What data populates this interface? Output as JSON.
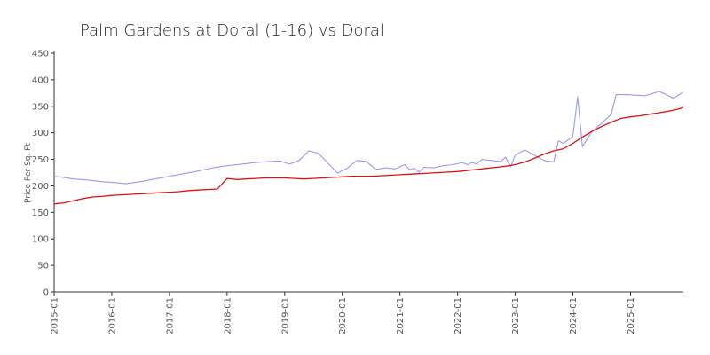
{
  "chart_data": {
    "type": "line",
    "title": "Palm Gardens at Doral (1-16) vs Doral",
    "xlabel": "",
    "ylabel": "Price Per Sq. Ft",
    "ylim": [
      0,
      450
    ],
    "yticks": [
      0,
      50,
      100,
      150,
      200,
      250,
      300,
      350,
      400,
      450
    ],
    "xlim": [
      "2015-01",
      "2025-12"
    ],
    "xticks": [
      "2015-01",
      "2016-01",
      "2017-01",
      "2018-01",
      "2019-01",
      "2020-01",
      "2021-01",
      "2022-01",
      "2023-01",
      "2024-01",
      "2025-01"
    ],
    "grid": false,
    "legend": "none",
    "series": [
      {
        "color": "#9999ee",
        "points": [
          [
            "2015-01",
            218
          ],
          [
            "2015-03",
            216
          ],
          [
            "2015-05",
            213
          ],
          [
            "2015-08",
            211
          ],
          [
            "2015-11",
            208
          ],
          [
            "2016-02",
            206
          ],
          [
            "2016-04",
            204
          ],
          [
            "2016-07",
            208
          ],
          [
            "2016-10",
            213
          ],
          [
            "2017-01",
            218
          ],
          [
            "2017-04",
            223
          ],
          [
            "2017-07",
            228
          ],
          [
            "2017-10",
            234
          ],
          [
            "2018-01",
            238
          ],
          [
            "2018-04",
            241
          ],
          [
            "2018-07",
            244
          ],
          [
            "2018-10",
            246
          ],
          [
            "2018-12",
            247
          ],
          [
            "2019-02",
            241
          ],
          [
            "2019-04",
            248
          ],
          [
            "2019-06",
            266
          ],
          [
            "2019-08",
            262
          ],
          [
            "2019-10",
            243
          ],
          [
            "2019-12",
            224
          ],
          [
            "2020-02",
            233
          ],
          [
            "2020-04",
            248
          ],
          [
            "2020-06",
            246
          ],
          [
            "2020-08",
            231
          ],
          [
            "2020-10",
            234
          ],
          [
            "2020-12",
            232
          ],
          [
            "2021-02",
            240
          ],
          [
            "2021-03",
            231
          ],
          [
            "2021-04",
            233
          ],
          [
            "2021-05",
            226
          ],
          [
            "2021-06",
            235
          ],
          [
            "2021-08",
            234
          ],
          [
            "2021-10",
            238
          ],
          [
            "2021-12",
            240
          ],
          [
            "2022-02",
            244
          ],
          [
            "2022-03",
            240
          ],
          [
            "2022-04",
            244
          ],
          [
            "2022-05",
            241
          ],
          [
            "2022-06",
            250
          ],
          [
            "2022-08",
            248
          ],
          [
            "2022-10",
            246
          ],
          [
            "2022-11",
            254
          ],
          [
            "2022-12",
            236
          ],
          [
            "2023-01",
            258
          ],
          [
            "2023-03",
            268
          ],
          [
            "2023-05",
            258
          ],
          [
            "2023-07",
            248
          ],
          [
            "2023-09",
            245
          ],
          [
            "2023-10",
            285
          ],
          [
            "2023-11",
            280
          ],
          [
            "2024-01",
            293
          ],
          [
            "2024-02",
            368
          ],
          [
            "2024-03",
            274
          ],
          [
            "2024-05",
            303
          ],
          [
            "2024-07",
            318
          ],
          [
            "2024-09",
            335
          ],
          [
            "2024-10",
            372
          ],
          [
            "2024-12",
            372
          ],
          [
            "2025-02",
            371
          ],
          [
            "2025-04",
            370
          ],
          [
            "2025-07",
            378
          ],
          [
            "2025-10",
            365
          ],
          [
            "2025-12",
            377
          ]
        ]
      },
      {
        "color": "#dd1111",
        "points": [
          [
            "2015-01",
            166
          ],
          [
            "2015-03",
            168
          ],
          [
            "2015-05",
            172
          ],
          [
            "2015-07",
            176
          ],
          [
            "2015-09",
            179
          ],
          [
            "2015-11",
            180
          ],
          [
            "2016-01",
            182
          ],
          [
            "2016-03",
            183
          ],
          [
            "2016-05",
            184
          ],
          [
            "2016-07",
            185
          ],
          [
            "2016-09",
            186
          ],
          [
            "2016-11",
            187
          ],
          [
            "2017-01",
            188
          ],
          [
            "2017-03",
            189
          ],
          [
            "2017-05",
            191
          ],
          [
            "2017-07",
            192
          ],
          [
            "2017-09",
            193
          ],
          [
            "2017-11",
            194
          ],
          [
            "2018-01",
            214
          ],
          [
            "2018-03",
            212
          ],
          [
            "2018-05",
            213
          ],
          [
            "2018-07",
            214
          ],
          [
            "2018-09",
            215
          ],
          [
            "2018-11",
            215
          ],
          [
            "2019-01",
            215
          ],
          [
            "2019-03",
            214
          ],
          [
            "2019-05",
            213
          ],
          [
            "2019-07",
            214
          ],
          [
            "2019-09",
            215
          ],
          [
            "2019-11",
            216
          ],
          [
            "2020-01",
            217
          ],
          [
            "2020-03",
            218
          ],
          [
            "2020-05",
            218
          ],
          [
            "2020-07",
            218
          ],
          [
            "2020-09",
            219
          ],
          [
            "2020-11",
            220
          ],
          [
            "2021-01",
            221
          ],
          [
            "2021-03",
            222
          ],
          [
            "2021-05",
            223
          ],
          [
            "2021-07",
            224
          ],
          [
            "2021-09",
            225
          ],
          [
            "2021-11",
            226
          ],
          [
            "2022-01",
            227
          ],
          [
            "2022-03",
            229
          ],
          [
            "2022-05",
            231
          ],
          [
            "2022-07",
            233
          ],
          [
            "2022-09",
            235
          ],
          [
            "2022-11",
            237
          ],
          [
            "2023-01",
            240
          ],
          [
            "2023-03",
            245
          ],
          [
            "2023-05",
            252
          ],
          [
            "2023-07",
            260
          ],
          [
            "2023-09",
            266
          ],
          [
            "2023-11",
            270
          ],
          [
            "2024-01",
            280
          ],
          [
            "2024-03",
            292
          ],
          [
            "2024-05",
            303
          ],
          [
            "2024-07",
            312
          ],
          [
            "2024-09",
            320
          ],
          [
            "2024-11",
            327
          ],
          [
            "2025-01",
            330
          ],
          [
            "2025-03",
            332
          ],
          [
            "2025-05",
            335
          ],
          [
            "2025-07",
            338
          ],
          [
            "2025-09",
            341
          ],
          [
            "2025-11",
            345
          ],
          [
            "2025-12",
            348
          ]
        ]
      }
    ]
  }
}
